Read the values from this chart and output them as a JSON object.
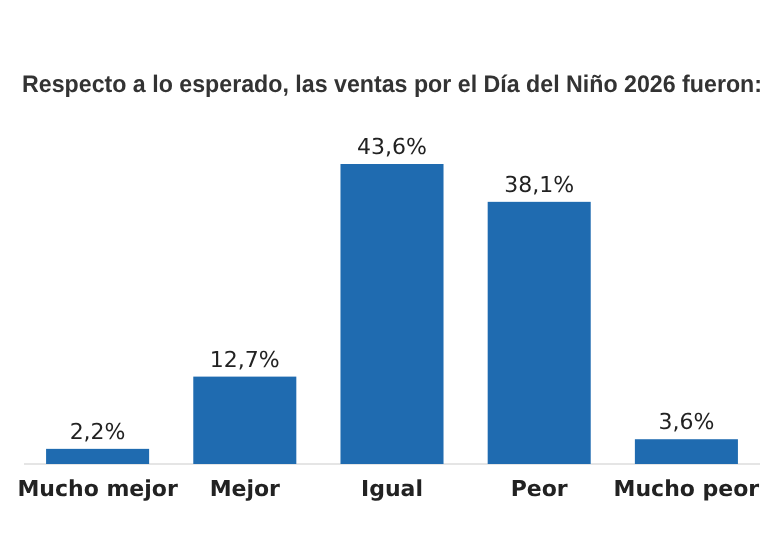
{
  "chart_data": {
    "type": "bar",
    "title": "Respecto a lo esperado, las ventas por el Día del Niño 2026 fueron:",
    "categories": [
      "Mucho mejor",
      "Mejor",
      "Igual",
      "Peor",
      "Mucho peor"
    ],
    "values": [
      2.2,
      12.7,
      43.6,
      38.1,
      3.6
    ],
    "value_labels": [
      "2,2%",
      "12,7%",
      "43,6%",
      "38,1%",
      "3,6%"
    ],
    "color": "#1f6bb0"
  }
}
